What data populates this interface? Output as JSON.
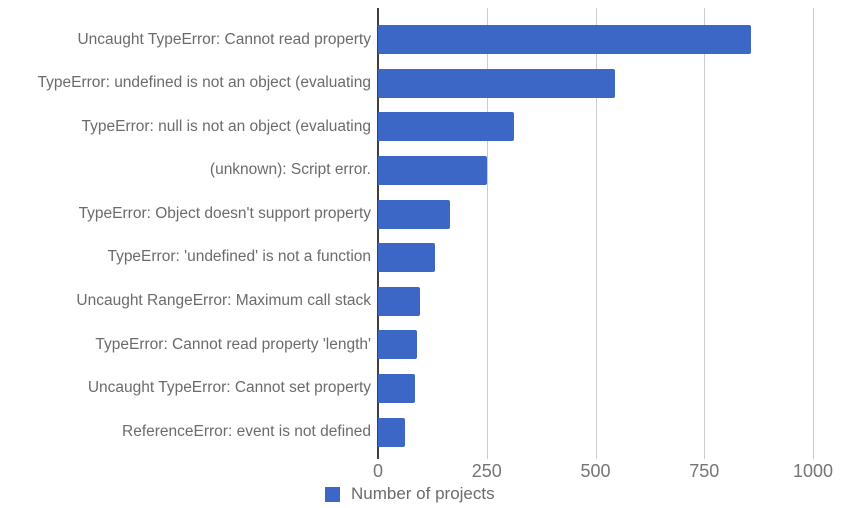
{
  "chart_data": {
    "type": "bar",
    "orientation": "horizontal",
    "title": "",
    "xlabel": "",
    "ylabel": "",
    "legend": "Number of projects",
    "legend_position": "bottom",
    "grid": true,
    "xlim": [
      0,
      1000
    ],
    "x_ticks": [
      0,
      250,
      500,
      750,
      1000
    ],
    "categories": [
      "Uncaught TypeError: Cannot read property",
      "TypeError: undefined is not an object (evaluating",
      "TypeError: null is not an object (evaluating",
      "(unknown): Script error.",
      "TypeError: Object doesn't support property",
      "TypeError: 'undefined' is not a function",
      "Uncaught RangeError: Maximum call stack",
      "TypeError: Cannot read property 'length'",
      "Uncaught TypeError: Cannot set property",
      "ReferenceError: event is not defined"
    ],
    "values": [
      857,
      545,
      312,
      251,
      166,
      131,
      96,
      89,
      86,
      63
    ],
    "colors": {
      "bar": "#3d67c6",
      "category_label": "#6b6b6b",
      "tick_label": "#757575",
      "gridline": "#cccccc",
      "axis_line": "#3f3f3f",
      "background": "#ffffff"
    }
  }
}
